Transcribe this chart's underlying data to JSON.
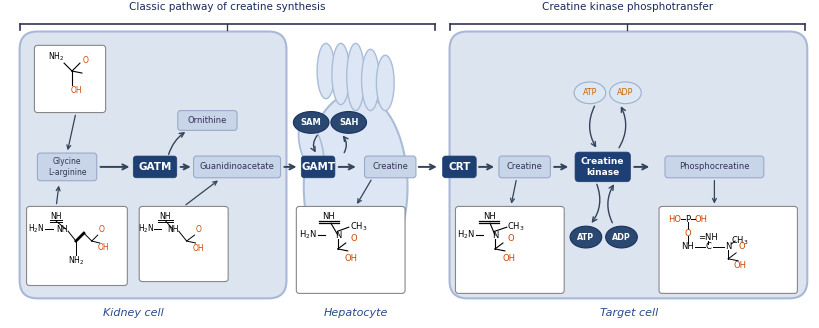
{
  "bg_color": "#ffffff",
  "title1": "Classic pathway of creatine synthesis",
  "title2": "Creatine kinase phosphotransfer",
  "label_kidney": "Kidney cell",
  "label_hepatocyte": "Hepatocyte",
  "label_target": "Target cell",
  "cell_fill": "#dce4f0",
  "cell_edge": "#aab8d8",
  "hepato_fill": "#dde6f4",
  "hepato_edge": "#aabdd8",
  "enzyme_fill": "#1e3f73",
  "enzyme_text": "#ffffff",
  "metabolite_fill": "#c8d4e8",
  "metabolite_edge": "#9aaac8",
  "metabolite_text": "#333355",
  "sam_sah_fill": "#2a4870",
  "sam_sah_edge": "#1a3060",
  "atp_adp_light_fill": "#dde8f5",
  "atp_adp_light_edge": "#9aafcc",
  "atp_adp_dark_fill": "#2a4870",
  "atp_adp_dark_edge": "#1a3060",
  "arrow_color": "#33435a",
  "struct_box_fill": "#ffffff",
  "struct_box_edge": "#888888",
  "text_color_dark": "#1a2a5a",
  "text_color_red": "#cc4400",
  "bracket_color": "#333355",
  "title_fontsize": 7.5,
  "label_fontsize": 8.0,
  "enzyme_fontsize": 7.5,
  "metabolite_fontsize": 6.0,
  "struct_fontsize": 5.5
}
